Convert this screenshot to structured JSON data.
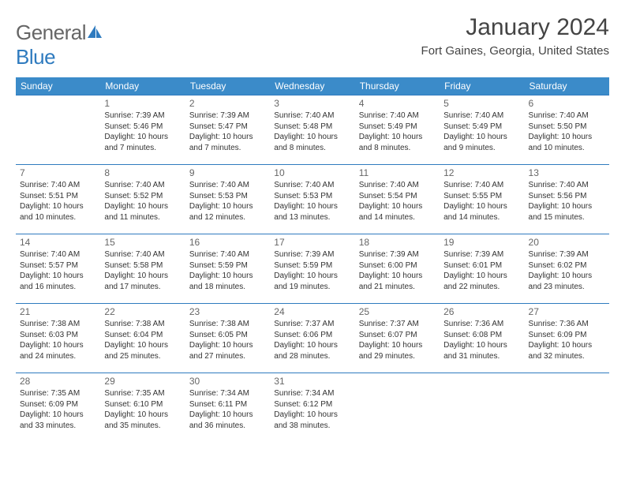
{
  "logo": {
    "part1": "General",
    "part2": "Blue"
  },
  "title": "January 2024",
  "location": "Fort Gaines, Georgia, United States",
  "colors": {
    "header_bg": "#3b8bc9",
    "border": "#2f7bbf",
    "text": "#333333",
    "logo_gray": "#666666",
    "logo_blue": "#2f7bbf"
  },
  "weekdays": [
    "Sunday",
    "Monday",
    "Tuesday",
    "Wednesday",
    "Thursday",
    "Friday",
    "Saturday"
  ],
  "weeks": [
    [
      null,
      {
        "n": "1",
        "sr": "7:39 AM",
        "ss": "5:46 PM",
        "dl": "10 hours and 7 minutes."
      },
      {
        "n": "2",
        "sr": "7:39 AM",
        "ss": "5:47 PM",
        "dl": "10 hours and 7 minutes."
      },
      {
        "n": "3",
        "sr": "7:40 AM",
        "ss": "5:48 PM",
        "dl": "10 hours and 8 minutes."
      },
      {
        "n": "4",
        "sr": "7:40 AM",
        "ss": "5:49 PM",
        "dl": "10 hours and 8 minutes."
      },
      {
        "n": "5",
        "sr": "7:40 AM",
        "ss": "5:49 PM",
        "dl": "10 hours and 9 minutes."
      },
      {
        "n": "6",
        "sr": "7:40 AM",
        "ss": "5:50 PM",
        "dl": "10 hours and 10 minutes."
      }
    ],
    [
      {
        "n": "7",
        "sr": "7:40 AM",
        "ss": "5:51 PM",
        "dl": "10 hours and 10 minutes."
      },
      {
        "n": "8",
        "sr": "7:40 AM",
        "ss": "5:52 PM",
        "dl": "10 hours and 11 minutes."
      },
      {
        "n": "9",
        "sr": "7:40 AM",
        "ss": "5:53 PM",
        "dl": "10 hours and 12 minutes."
      },
      {
        "n": "10",
        "sr": "7:40 AM",
        "ss": "5:53 PM",
        "dl": "10 hours and 13 minutes."
      },
      {
        "n": "11",
        "sr": "7:40 AM",
        "ss": "5:54 PM",
        "dl": "10 hours and 14 minutes."
      },
      {
        "n": "12",
        "sr": "7:40 AM",
        "ss": "5:55 PM",
        "dl": "10 hours and 14 minutes."
      },
      {
        "n": "13",
        "sr": "7:40 AM",
        "ss": "5:56 PM",
        "dl": "10 hours and 15 minutes."
      }
    ],
    [
      {
        "n": "14",
        "sr": "7:40 AM",
        "ss": "5:57 PM",
        "dl": "10 hours and 16 minutes."
      },
      {
        "n": "15",
        "sr": "7:40 AM",
        "ss": "5:58 PM",
        "dl": "10 hours and 17 minutes."
      },
      {
        "n": "16",
        "sr": "7:40 AM",
        "ss": "5:59 PM",
        "dl": "10 hours and 18 minutes."
      },
      {
        "n": "17",
        "sr": "7:39 AM",
        "ss": "5:59 PM",
        "dl": "10 hours and 19 minutes."
      },
      {
        "n": "18",
        "sr": "7:39 AM",
        "ss": "6:00 PM",
        "dl": "10 hours and 21 minutes."
      },
      {
        "n": "19",
        "sr": "7:39 AM",
        "ss": "6:01 PM",
        "dl": "10 hours and 22 minutes."
      },
      {
        "n": "20",
        "sr": "7:39 AM",
        "ss": "6:02 PM",
        "dl": "10 hours and 23 minutes."
      }
    ],
    [
      {
        "n": "21",
        "sr": "7:38 AM",
        "ss": "6:03 PM",
        "dl": "10 hours and 24 minutes."
      },
      {
        "n": "22",
        "sr": "7:38 AM",
        "ss": "6:04 PM",
        "dl": "10 hours and 25 minutes."
      },
      {
        "n": "23",
        "sr": "7:38 AM",
        "ss": "6:05 PM",
        "dl": "10 hours and 27 minutes."
      },
      {
        "n": "24",
        "sr": "7:37 AM",
        "ss": "6:06 PM",
        "dl": "10 hours and 28 minutes."
      },
      {
        "n": "25",
        "sr": "7:37 AM",
        "ss": "6:07 PM",
        "dl": "10 hours and 29 minutes."
      },
      {
        "n": "26",
        "sr": "7:36 AM",
        "ss": "6:08 PM",
        "dl": "10 hours and 31 minutes."
      },
      {
        "n": "27",
        "sr": "7:36 AM",
        "ss": "6:09 PM",
        "dl": "10 hours and 32 minutes."
      }
    ],
    [
      {
        "n": "28",
        "sr": "7:35 AM",
        "ss": "6:09 PM",
        "dl": "10 hours and 33 minutes."
      },
      {
        "n": "29",
        "sr": "7:35 AM",
        "ss": "6:10 PM",
        "dl": "10 hours and 35 minutes."
      },
      {
        "n": "30",
        "sr": "7:34 AM",
        "ss": "6:11 PM",
        "dl": "10 hours and 36 minutes."
      },
      {
        "n": "31",
        "sr": "7:34 AM",
        "ss": "6:12 PM",
        "dl": "10 hours and 38 minutes."
      },
      null,
      null,
      null
    ]
  ],
  "labels": {
    "sunrise": "Sunrise:",
    "sunset": "Sunset:",
    "daylight": "Daylight:"
  }
}
